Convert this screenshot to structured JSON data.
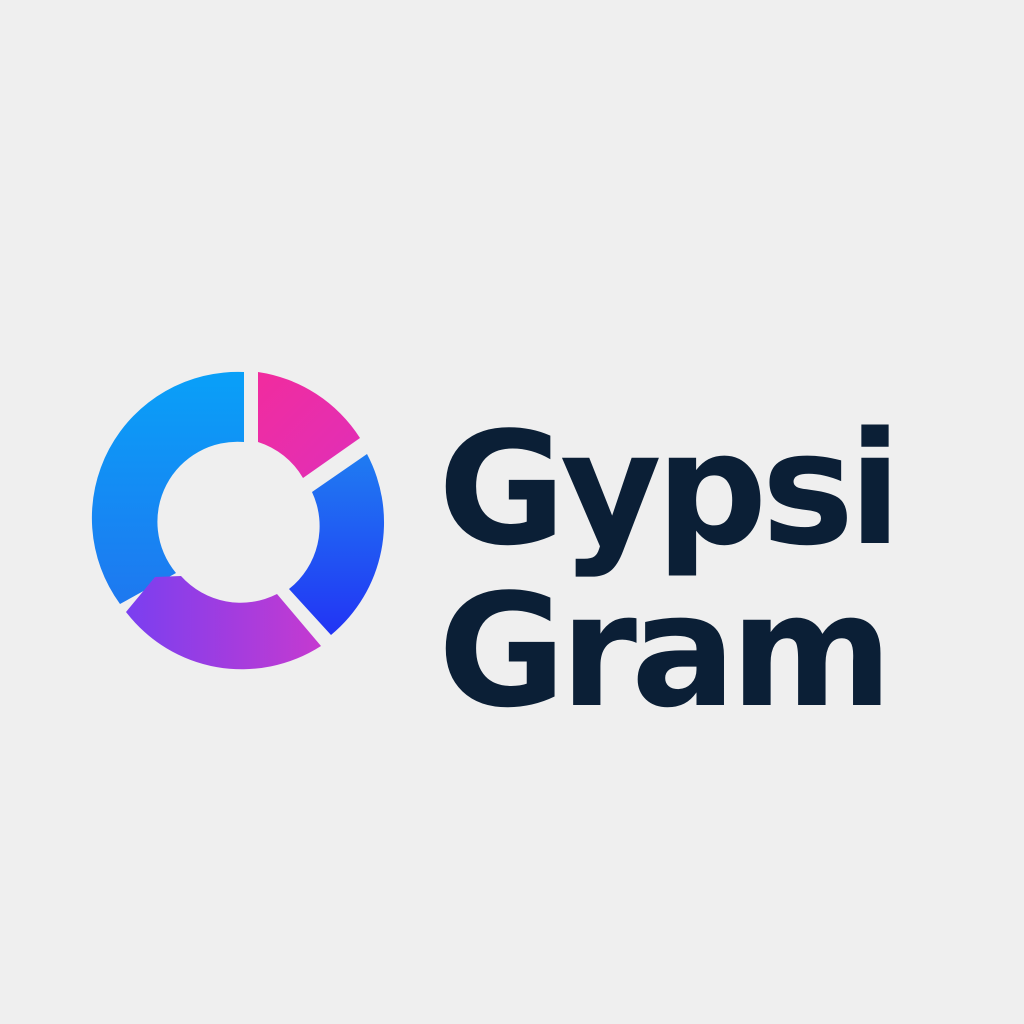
{
  "brand": {
    "name_line_1": "Gypsi",
    "name_line_2": "Gram",
    "text_color": "#0b1f36",
    "background_color": "#efefef"
  },
  "logo_mark": {
    "icon": "segmented-ring-icon",
    "segment_colors": {
      "top_left_arc_start": "#09a0f8",
      "top_left_arc_end": "#1e78f0",
      "top_right_arc_start": "#f12c9e",
      "top_right_arc_end": "#e02fb8",
      "right_arc_start": "#1f7cf2",
      "right_arc_end": "#2234f4",
      "bottom_arc_start": "#7a3ff0",
      "bottom_arc_end": "#c53ad0"
    }
  }
}
